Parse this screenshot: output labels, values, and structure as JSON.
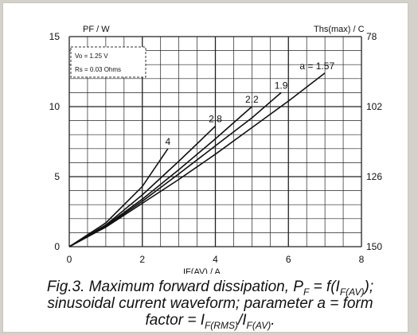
{
  "chart_data": {
    "type": "line",
    "left_axis_label": "PF / W",
    "right_axis_label": "Ths(max) / C",
    "xlabel": "IF(AV) / A",
    "xlim": [
      0,
      8
    ],
    "ylim": [
      0,
      15
    ],
    "x_ticks": [
      "0",
      "2",
      "4",
      "6",
      "8"
    ],
    "y_ticks": [
      "0",
      "5",
      "10",
      "15"
    ],
    "right_ticks": [
      {
        "at": 15,
        "label": "78"
      },
      {
        "at": 10,
        "label": "102"
      },
      {
        "at": 5,
        "label": "126"
      },
      {
        "at": 0,
        "label": "150"
      }
    ],
    "grid": true,
    "legend_box": {
      "line1": "Vo = 1.25 V",
      "line2": "Rs = 0.03 Ohms"
    },
    "series": [
      {
        "name": "a = 1.57",
        "points": [
          [
            0,
            0
          ],
          [
            1,
            1.4
          ],
          [
            2,
            3.1
          ],
          [
            3,
            4.8
          ],
          [
            4,
            6.6
          ],
          [
            5,
            8.5
          ],
          [
            6,
            10.4
          ],
          [
            7,
            12.4
          ]
        ]
      },
      {
        "name": "1.9",
        "points": [
          [
            0,
            0
          ],
          [
            1,
            1.45
          ],
          [
            2,
            3.25
          ],
          [
            3,
            5.2
          ],
          [
            4,
            7.2
          ],
          [
            5,
            9.2
          ],
          [
            5.8,
            11.0
          ]
        ]
      },
      {
        "name": "2.2",
        "points": [
          [
            0,
            0
          ],
          [
            1,
            1.5
          ],
          [
            2,
            3.4
          ],
          [
            3,
            5.5
          ],
          [
            4,
            7.7
          ],
          [
            5,
            10.0
          ]
        ]
      },
      {
        "name": "2.8",
        "points": [
          [
            0,
            0
          ],
          [
            1,
            1.55
          ],
          [
            2,
            3.7
          ],
          [
            3,
            6.1
          ],
          [
            4,
            8.6
          ]
        ]
      },
      {
        "name": "4",
        "points": [
          [
            0,
            0
          ],
          [
            1,
            1.7
          ],
          [
            2,
            4.3
          ],
          [
            2.7,
            7.0
          ]
        ]
      }
    ]
  },
  "caption": {
    "line1_pre": "Fig.3.  Maximum forward dissipation, P",
    "line1_sub1": "F",
    "line1_mid": " = f(I",
    "line1_sub2": "F(AV)",
    "line1_post": ");",
    "line2": "sinusoidal current waveform; parameter a = form",
    "line3_pre": "factor = I",
    "line3_sub1": "F(RMS)",
    "line3_mid": "/I",
    "line3_sub2": "F(AV)",
    "line3_post": "."
  }
}
